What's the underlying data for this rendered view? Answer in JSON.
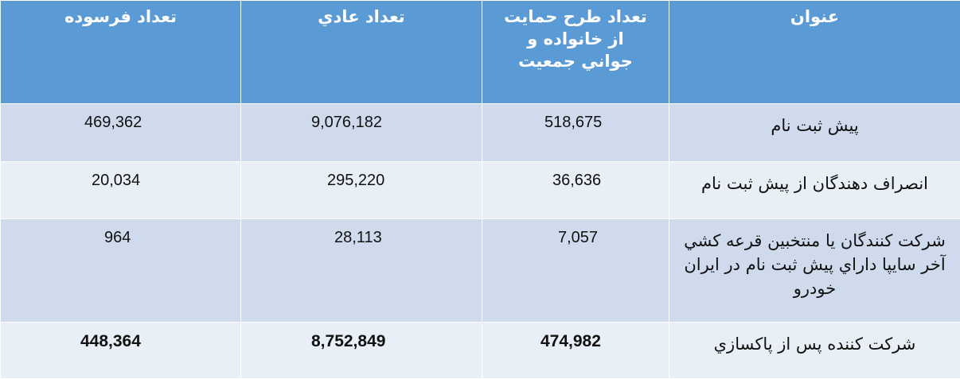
{
  "headers": [
    "عنوان",
    "تعداد طرح حمايت از خانواده و جواني جمعيت",
    "تعداد عادي",
    "تعداد فرسوده"
  ],
  "rows": [
    {
      "title": "پيش ثبت نام",
      "family": "518,675",
      "regular": "9,076,182",
      "worn": "469,362"
    },
    {
      "title": "انصراف دهندگان از پيش ثبت نام",
      "family": "36,636",
      "regular": "295,220",
      "worn": "20,034"
    },
    {
      "title": "شركت كنندگان يا منتخبين قرعه كشي آخر سايپا داراي پيش ثبت نام در ايران خودرو",
      "family": "7,057",
      "regular": "28,113",
      "worn": "964"
    },
    {
      "title": "شركت كننده پس از پاكسازي",
      "family": "474,982",
      "regular": "8,752,849",
      "worn": "448,364"
    }
  ],
  "colors": {
    "header": "#5b9bd5",
    "row_dark": "#cfdbed",
    "row_light": "#e9eff7"
  }
}
